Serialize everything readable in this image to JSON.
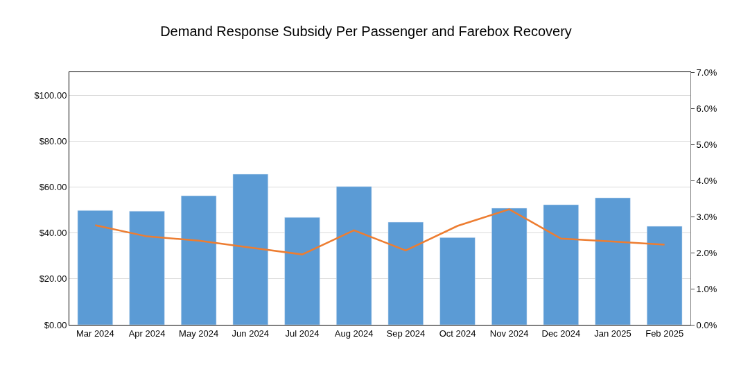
{
  "chart_data": {
    "type": "bar",
    "title": "Demand Response Subsidy Per Passenger and Farebox Recovery",
    "categories": [
      "Mar 2024",
      "Apr 2024",
      "May 2024",
      "Jun 2024",
      "Jul 2024",
      "Aug 2024",
      "Sep 2024",
      "Oct 2024",
      "Nov 2024",
      "Dec 2024",
      "Jan 2025",
      "Feb 2025"
    ],
    "series": [
      {
        "color": "#5b9bd5",
        "values": [
          49.8,
          49.5,
          56.2,
          65.6,
          46.8,
          60.2,
          44.7,
          38.0,
          50.8,
          52.3,
          55.3,
          42.9
        ]
      },
      {
        "type": "line",
        "axis": "y2",
        "color": "#ed7d31",
        "values": [
          2.76,
          2.45,
          2.33,
          2.14,
          1.95,
          2.62,
          2.06,
          2.74,
          3.2,
          2.39,
          2.31,
          2.22
        ]
      }
    ],
    "ylim": [
      0,
      110
    ],
    "yticks": [
      {
        "value": 0,
        "label": "$0.00"
      },
      {
        "value": 20,
        "label": "$20.00"
      },
      {
        "value": 40,
        "label": "$40.00"
      },
      {
        "value": 60,
        "label": "$60.00"
      },
      {
        "value": 80,
        "label": "$80.00"
      },
      {
        "value": 100,
        "label": "$100.00"
      }
    ],
    "y2lim": [
      0,
      7
    ],
    "y2ticks": [
      {
        "value": 0,
        "label": "0.0%"
      },
      {
        "value": 1,
        "label": "1.0%"
      },
      {
        "value": 2,
        "label": "2.0%"
      },
      {
        "value": 3,
        "label": "3.0%"
      },
      {
        "value": 4,
        "label": "4.0%"
      },
      {
        "value": 5,
        "label": "5.0%"
      },
      {
        "value": 6,
        "label": "6.0%"
      },
      {
        "value": 7,
        "label": "7.0%"
      }
    ],
    "grid": "y",
    "legend": false,
    "marker": "none",
    "line_style": "solid"
  }
}
